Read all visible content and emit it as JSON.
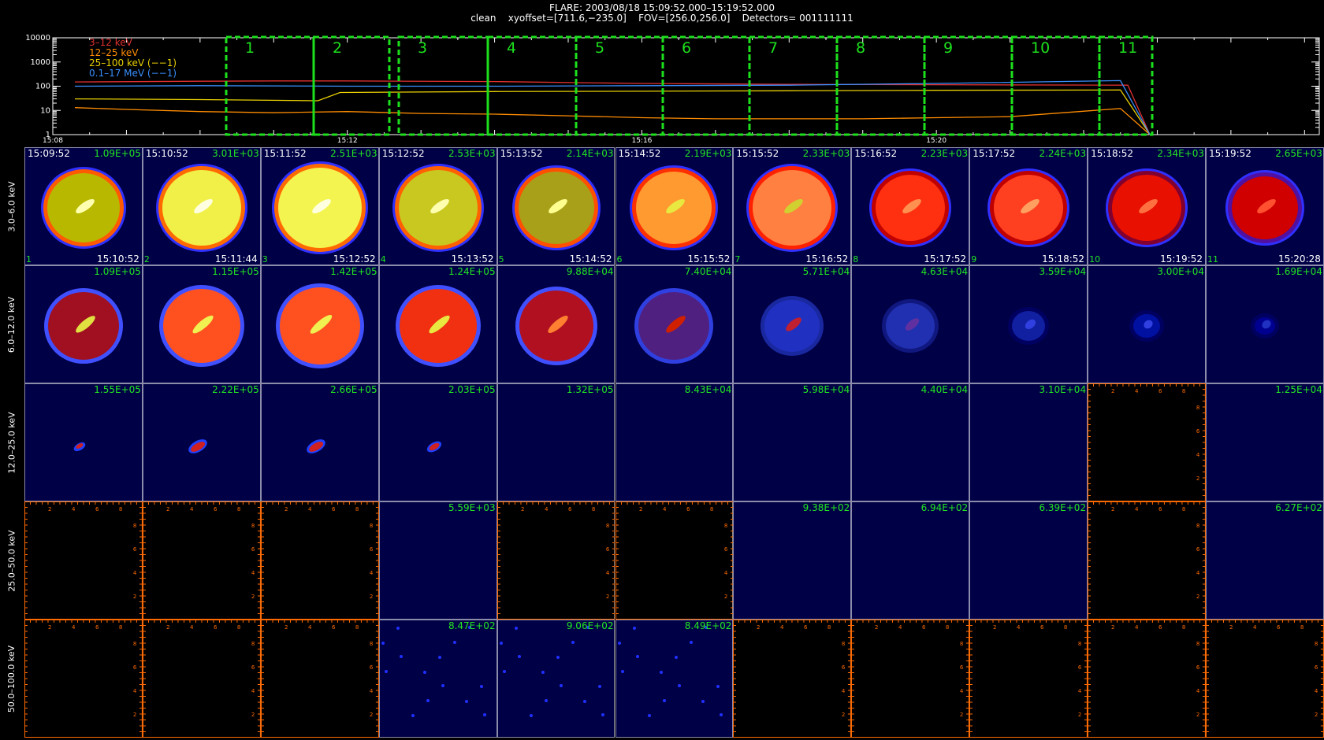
{
  "header": {
    "line1": "FLARE: 2003/08/18 15:09:52.000–15:19:52.000",
    "line2": "clean    xyoffset=[711.6,−235.0]    FOV=[256.0,256.0]    Detectors= 001111111"
  },
  "chart_data": [
    {
      "type": "line",
      "title": "",
      "xlabel": "",
      "ylabel": "",
      "log_y": true,
      "ylim": [
        1,
        10000
      ],
      "y_ticks": [
        "10000",
        "1000",
        "100",
        "10",
        "1"
      ],
      "x_ticks": [
        "15:08",
        "15:12",
        "15:16",
        "15:20"
      ],
      "x_tick_minutes": [
        8,
        12,
        16,
        20
      ],
      "xlim_minutes": [
        8,
        25.2
      ],
      "legend": [
        "3–12 keV",
        "12–25 keV",
        "25–100 keV (−−1)",
        "0.1–17 MeV (−−1)"
      ],
      "legend_placement": "top-left",
      "series": [
        {
          "name": "3–12 keV",
          "color": "#e03030",
          "x": [
            8.3,
            10,
            11,
            12,
            14,
            16,
            18,
            20,
            22.6,
            22.9
          ],
          "y": [
            150,
            160,
            165,
            165,
            155,
            130,
            120,
            115,
            110,
            1
          ]
        },
        {
          "name": "12–25 keV",
          "color": "#ff8c00",
          "x": [
            8.3,
            9,
            10,
            11,
            12,
            13,
            14,
            15,
            16,
            17,
            18,
            19,
            20,
            21,
            22.5,
            22.9
          ],
          "y": [
            13,
            11,
            9,
            8,
            9,
            7.5,
            7,
            6,
            5,
            4.5,
            4.5,
            4.5,
            5,
            5.5,
            12,
            1
          ]
        },
        {
          "name": "25–100 keV (−−1)",
          "color": "#e8d000",
          "x": [
            8.3,
            10,
            11.6,
            11.9,
            14,
            16,
            18,
            20,
            22.5,
            22.9
          ],
          "y": [
            30,
            28,
            25,
            55,
            60,
            62,
            65,
            68,
            70,
            1
          ]
        },
        {
          "name": "0.1–17 MeV (−−1)",
          "color": "#3a8fff",
          "x": [
            8.3,
            10,
            12,
            14,
            16,
            18,
            20,
            22.5,
            22.9
          ],
          "y": [
            100,
            105,
            100,
            100,
            105,
            110,
            130,
            170,
            1
          ]
        }
      ],
      "windows": [
        "1",
        "2",
        "3",
        "4",
        "5",
        "6",
        "7",
        "8",
        "9",
        "10",
        "11"
      ],
      "window_edges_minutes": [
        9.867,
        11.45,
        12.8,
        14.35,
        15.95,
        17.5,
        19.1,
        20.65,
        22.25,
        23.8,
        25.35,
        26.25
      ]
    },
    {
      "type": "heatmap",
      "title": "image cube",
      "energy_bands": [
        "3.0–6.0 keV",
        "6.0–12.0 keV",
        "12.0–25.0 keV",
        "25.0–50.0 keV",
        "50.0–100.0 keV"
      ],
      "start_times": [
        "15:09:52",
        "15:10:52",
        "15:11:52",
        "15:12:52",
        "15:13:52",
        "15:14:52",
        "15:15:52",
        "15:16:52",
        "15:17:52",
        "15:18:52",
        "15:19:52"
      ],
      "end_times": [
        "15:10:52",
        "15:11:44",
        "15:12:52",
        "15:13:52",
        "15:14:52",
        "15:15:52",
        "15:16:52",
        "15:17:52",
        "15:18:52",
        "15:19:52",
        "15:20:28"
      ],
      "interval_numbers": [
        "1",
        "2",
        "3",
        "4",
        "5",
        "6",
        "7",
        "8",
        "9",
        "10",
        "11"
      ],
      "max_values": [
        [
          "1.09E+05",
          "3.01E+03",
          "2.51E+03",
          "2.53E+03",
          "2.14E+03",
          "2.19E+03",
          "2.33E+03",
          "2.23E+03",
          "2.24E+03",
          "2.34E+03",
          "2.65E+03"
        ],
        [
          "1.09E+05",
          "1.15E+05",
          "1.42E+05",
          "1.24E+05",
          "9.88E+04",
          "7.40E+04",
          "5.71E+04",
          "4.63E+04",
          "3.59E+04",
          "3.00E+04",
          "1.69E+04"
        ],
        [
          "1.55E+05",
          "2.22E+05",
          "2.66E+05",
          "2.03E+05",
          "1.32E+05",
          "8.43E+04",
          "5.98E+04",
          "4.40E+04",
          "3.10E+04",
          "",
          "1.25E+04"
        ],
        [
          "",
          "",
          "",
          "5.59E+03",
          "",
          "",
          "9.38E+02",
          "6.94E+02",
          "6.39E+02",
          "",
          "6.27E+02"
        ],
        [
          "",
          "",
          "",
          "8.47E+02",
          "9.06E+02",
          "8.49E+02",
          "",
          "",
          "",
          "",
          ""
        ]
      ],
      "empty_axis_ticks": [
        "2",
        "4",
        "6",
        "8"
      ]
    }
  ]
}
